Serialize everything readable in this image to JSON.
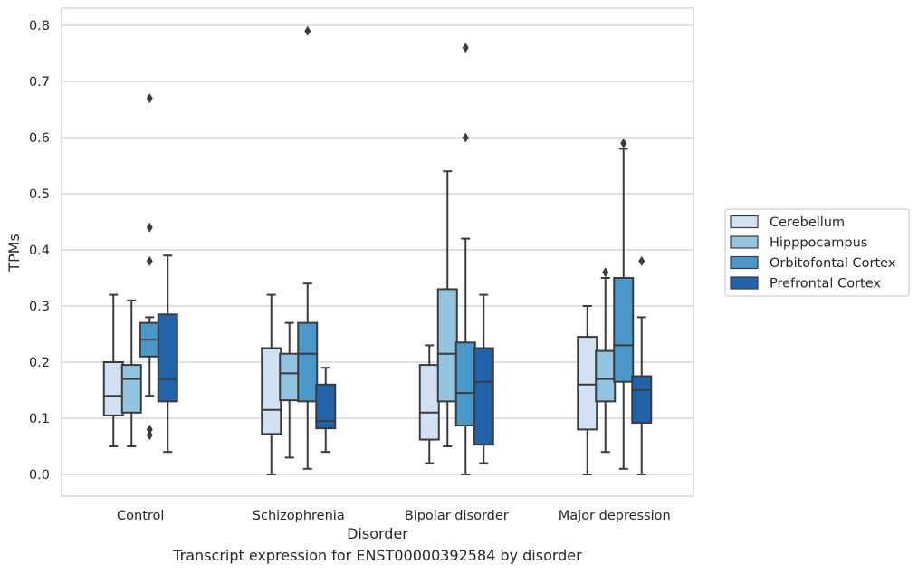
{
  "caption": "Transcript expression for ENST00000392584 by disorder",
  "chart_data": {
    "type": "boxplot",
    "xlabel": "Disorder",
    "ylabel": "TPMs",
    "ylim": [
      -0.04,
      0.83
    ],
    "yticks": [
      "0.0",
      "0.1",
      "0.2",
      "0.3",
      "0.4",
      "0.5",
      "0.6",
      "0.7",
      "0.8"
    ],
    "grid": "horizontal",
    "legend_position": "right",
    "categories": [
      "Control",
      "Schizophrenia",
      "Bipolar disorder",
      "Major depression"
    ],
    "series": [
      {
        "name": "Cerebellum",
        "color": "#d0e1f2",
        "boxes": [
          {
            "whislo": 0.05,
            "q1": 0.105,
            "med": 0.14,
            "q3": 0.2,
            "whishi": 0.32,
            "fliers": []
          },
          {
            "whislo": 0.0,
            "q1": 0.072,
            "med": 0.115,
            "q3": 0.225,
            "whishi": 0.32,
            "fliers": []
          },
          {
            "whislo": 0.02,
            "q1": 0.062,
            "med": 0.11,
            "q3": 0.195,
            "whishi": 0.23,
            "fliers": []
          },
          {
            "whislo": 0.0,
            "q1": 0.08,
            "med": 0.16,
            "q3": 0.245,
            "whishi": 0.3,
            "fliers": []
          }
        ]
      },
      {
        "name": "Hipppocampus",
        "color": "#94c4df",
        "boxes": [
          {
            "whislo": 0.05,
            "q1": 0.11,
            "med": 0.17,
            "q3": 0.195,
            "whishi": 0.31,
            "fliers": []
          },
          {
            "whislo": 0.03,
            "q1": 0.132,
            "med": 0.18,
            "q3": 0.215,
            "whishi": 0.27,
            "fliers": []
          },
          {
            "whislo": 0.05,
            "q1": 0.13,
            "med": 0.215,
            "q3": 0.33,
            "whishi": 0.54,
            "fliers": []
          },
          {
            "whislo": 0.04,
            "q1": 0.13,
            "med": 0.17,
            "q3": 0.22,
            "whishi": 0.35,
            "fliers": [
              0.36
            ]
          }
        ]
      },
      {
        "name": "Orbitofontal Cortex",
        "color": "#4a98c9",
        "boxes": [
          {
            "whislo": 0.14,
            "q1": 0.21,
            "med": 0.24,
            "q3": 0.27,
            "whishi": 0.28,
            "fliers": [
              0.67,
              0.44,
              0.38,
              0.08,
              0.07
            ]
          },
          {
            "whislo": 0.01,
            "q1": 0.13,
            "med": 0.215,
            "q3": 0.27,
            "whishi": 0.34,
            "fliers": [
              0.79
            ]
          },
          {
            "whislo": 0.0,
            "q1": 0.087,
            "med": 0.145,
            "q3": 0.235,
            "whishi": 0.42,
            "fliers": [
              0.76,
              0.6
            ]
          },
          {
            "whislo": 0.01,
            "q1": 0.165,
            "med": 0.23,
            "q3": 0.35,
            "whishi": 0.58,
            "fliers": [
              0.59
            ]
          }
        ]
      },
      {
        "name": "Prefrontal Cortex",
        "color": "#2163aa",
        "boxes": [
          {
            "whislo": 0.04,
            "q1": 0.13,
            "med": 0.17,
            "q3": 0.285,
            "whishi": 0.39,
            "fliers": []
          },
          {
            "whislo": 0.04,
            "q1": 0.082,
            "med": 0.095,
            "q3": 0.16,
            "whishi": 0.19,
            "fliers": []
          },
          {
            "whislo": 0.02,
            "q1": 0.053,
            "med": 0.165,
            "q3": 0.225,
            "whishi": 0.32,
            "fliers": []
          },
          {
            "whislo": 0.0,
            "q1": 0.092,
            "med": 0.15,
            "q3": 0.175,
            "whishi": 0.28,
            "fliers": [
              0.38
            ]
          }
        ]
      }
    ]
  }
}
